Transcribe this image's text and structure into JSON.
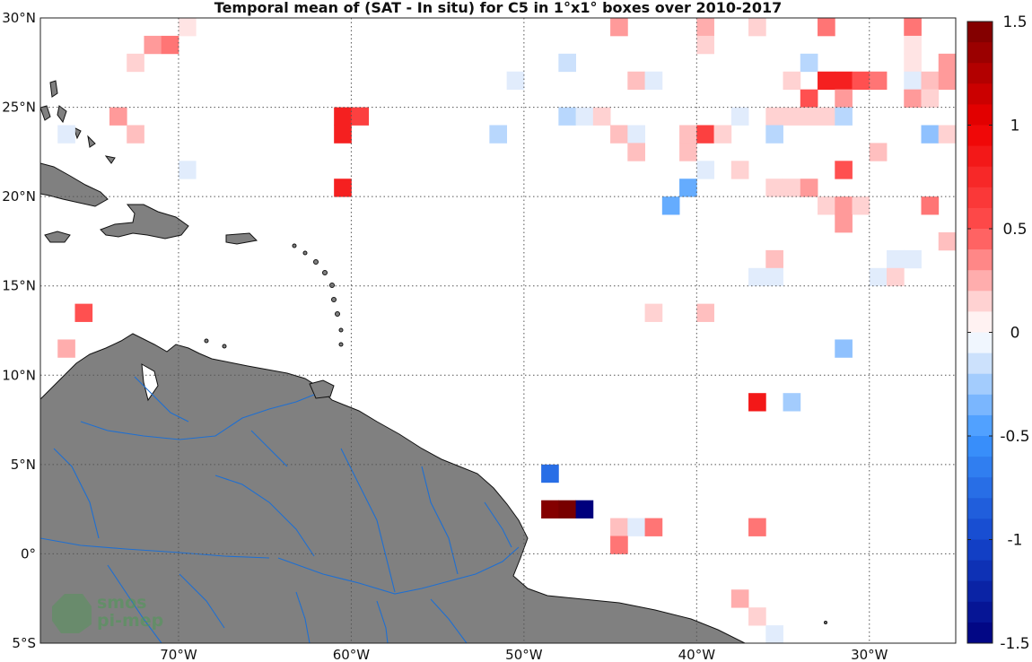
{
  "map": {
    "title": "Temporal mean of (SAT - In situ) for C5 in 1°x1° boxes over 2010-2017",
    "lon_range": [
      -78,
      -25
    ],
    "lat_range": [
      -5,
      30
    ],
    "lat_ticks": [
      {
        "value": 30,
        "label": "30°N"
      },
      {
        "value": 25,
        "label": "25°N"
      },
      {
        "value": 20,
        "label": "20°N"
      },
      {
        "value": 15,
        "label": "15°N"
      },
      {
        "value": 10,
        "label": "10°N"
      },
      {
        "value": 5,
        "label": "5°N"
      },
      {
        "value": 0,
        "label": "0°"
      },
      {
        "value": -5,
        "label": "5°S"
      }
    ],
    "lon_ticks": [
      {
        "value": -70,
        "label": "70°W"
      },
      {
        "value": -60,
        "label": "60°W"
      },
      {
        "value": -50,
        "label": "50°W"
      },
      {
        "value": -40,
        "label": "40°W"
      },
      {
        "value": -30,
        "label": "30°W"
      }
    ],
    "colorbar": {
      "range": [
        -1.5,
        1.5
      ],
      "ticks": [
        {
          "value": 1.5,
          "label": "1.5"
        },
        {
          "value": 1,
          "label": "1"
        },
        {
          "value": 0.5,
          "label": "0.5"
        },
        {
          "value": 0,
          "label": "0"
        },
        {
          "value": -0.5,
          "label": "-0.5"
        },
        {
          "value": -1,
          "label": "-1"
        },
        {
          "value": -1.5,
          "label": "-1.5"
        }
      ]
    },
    "colors": {
      "land": "#808080",
      "river": "#1f6fd1",
      "neutral": "#ffffff"
    },
    "logo": {
      "line1": "smos",
      "line2": "pi-mep"
    },
    "cells": [
      [
        -70,
        29,
        0.1
      ],
      [
        -72,
        28,
        0.3
      ],
      [
        -71,
        28,
        0.4
      ],
      [
        -73,
        27,
        0.15
      ],
      [
        -45,
        29,
        0.3
      ],
      [
        -40,
        29,
        0.25
      ],
      [
        -37,
        29,
        0.15
      ],
      [
        -33,
        29,
        0.4
      ],
      [
        -28,
        29,
        0.4
      ],
      [
        -40,
        28,
        0.15
      ],
      [
        -28,
        28,
        0.1
      ],
      [
        -48,
        27,
        -0.15
      ],
      [
        -34,
        27,
        -0.2
      ],
      [
        -28,
        27,
        0.1
      ],
      [
        -26,
        27,
        0.3
      ],
      [
        -25,
        27,
        0.3
      ],
      [
        -51,
        26,
        -0.1
      ],
      [
        -44,
        26,
        0.2
      ],
      [
        -43,
        26,
        -0.1
      ],
      [
        -35,
        26,
        0.15
      ],
      [
        -33,
        26,
        0.8
      ],
      [
        -32,
        26,
        0.8
      ],
      [
        -31,
        26,
        0.5
      ],
      [
        -30,
        26,
        0.4
      ],
      [
        -28,
        26,
        -0.1
      ],
      [
        -27,
        26,
        0.2
      ],
      [
        -26,
        26,
        0.3
      ],
      [
        -25,
        26,
        0.3
      ],
      [
        -34,
        25,
        0.5
      ],
      [
        -32,
        25,
        0.3
      ],
      [
        -28,
        25,
        0.3
      ],
      [
        -27,
        25,
        0.15
      ],
      [
        -74,
        24,
        0.3
      ],
      [
        -61,
        24,
        0.8
      ],
      [
        -60,
        24,
        0.6
      ],
      [
        -48,
        24,
        -0.2
      ],
      [
        -47,
        24,
        -0.1
      ],
      [
        -46,
        24,
        0.15
      ],
      [
        -38,
        24,
        -0.1
      ],
      [
        -36,
        24,
        0.15
      ],
      [
        -35,
        24,
        0.15
      ],
      [
        -34,
        24,
        0.15
      ],
      [
        -33,
        24,
        0.15
      ],
      [
        -32,
        24,
        -0.2
      ],
      [
        -77,
        23,
        -0.1
      ],
      [
        -73,
        23,
        0.2
      ],
      [
        -61,
        23,
        0.8
      ],
      [
        -52,
        23,
        -0.2
      ],
      [
        -45,
        23,
        0.2
      ],
      [
        -44,
        23,
        -0.1
      ],
      [
        -41,
        23,
        0.2
      ],
      [
        -40,
        23,
        0.6
      ],
      [
        -39,
        23,
        0.15
      ],
      [
        -36,
        23,
        -0.2
      ],
      [
        -27,
        23,
        -0.3
      ],
      [
        -26,
        23,
        0.15
      ],
      [
        -44,
        22,
        0.2
      ],
      [
        -41,
        22,
        0.2
      ],
      [
        -30,
        22,
        0.2
      ],
      [
        -70,
        21,
        -0.1
      ],
      [
        -40,
        21,
        -0.1
      ],
      [
        -38,
        21,
        0.15
      ],
      [
        -32,
        21,
        0.5
      ],
      [
        -25,
        21,
        0.3
      ],
      [
        -61,
        20,
        0.8
      ],
      [
        -41,
        20,
        -0.4
      ],
      [
        -36,
        20,
        0.15
      ],
      [
        -35,
        20,
        0.15
      ],
      [
        -34,
        20,
        0.3
      ],
      [
        -42,
        19,
        -0.4
      ],
      [
        -33,
        19,
        0.15
      ],
      [
        -32,
        19,
        0.3
      ],
      [
        -31,
        19,
        0.15
      ],
      [
        -27,
        19,
        0.4
      ],
      [
        -32,
        18,
        0.3
      ],
      [
        -26,
        17,
        0.2
      ],
      [
        -25,
        17,
        0.4
      ],
      [
        -36,
        16,
        0.2
      ],
      [
        -29,
        16,
        -0.1
      ],
      [
        -28,
        16,
        -0.1
      ],
      [
        -37,
        15,
        -0.1
      ],
      [
        -36,
        15,
        -0.1
      ],
      [
        -30,
        15,
        -0.1
      ],
      [
        -29,
        15,
        0.15
      ],
      [
        -76,
        13,
        0.5
      ],
      [
        -43,
        13,
        0.15
      ],
      [
        -40,
        13,
        0.2
      ],
      [
        -77,
        11,
        0.25
      ],
      [
        -32,
        11,
        -0.3
      ],
      [
        -37,
        8,
        0.85
      ],
      [
        -35,
        8,
        -0.25
      ],
      [
        -49,
        4,
        -0.75
      ],
      [
        -49,
        2,
        1.45
      ],
      [
        -48,
        2,
        1.5
      ],
      [
        -47,
        2,
        -1.5
      ],
      [
        -45,
        1,
        0.2
      ],
      [
        -44,
        1,
        -0.1
      ],
      [
        -43,
        1,
        0.4
      ],
      [
        -37,
        1,
        0.4
      ],
      [
        -45,
        0,
        0.4
      ],
      [
        -38,
        -3,
        0.25
      ],
      [
        -37,
        -4,
        0.15
      ],
      [
        -36,
        -5,
        -0.1
      ]
    ]
  }
}
